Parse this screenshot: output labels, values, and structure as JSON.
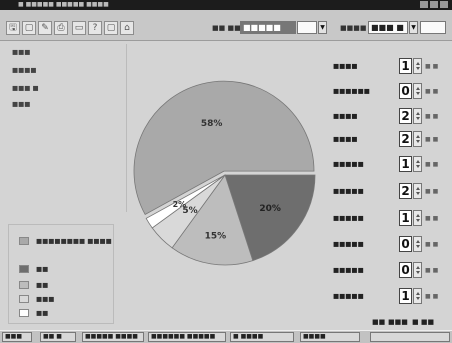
{
  "window": {
    "title": "■ ■■■■■ ■■■■■ ■■■■"
  },
  "toolbar": {
    "buttons": [
      "🖫",
      "▢",
      "✎",
      "⎙",
      "▭",
      "?",
      "▢",
      "⌂"
    ],
    "date_label": "■■ ■■",
    "date_value": "■■■■■",
    "print_label": "■■■■ ■",
    "print_value": "■■■ ■"
  },
  "left_list": [
    "■■■",
    "■■■■",
    "■■■ ■",
    "■■■"
  ],
  "legend": [
    {
      "label": "■■■■■■■■ ■■■■",
      "color": "#a9a9a9"
    },
    {
      "label": "■■",
      "color": "#6e6e6e"
    },
    {
      "label": "■■",
      "color": "#bdbdbd"
    },
    {
      "label": "■■■",
      "color": "#d9d9d9"
    },
    {
      "label": "■■",
      "color": "#ffffff"
    }
  ],
  "chart_data": {
    "type": "pie",
    "slices": [
      {
        "label": "58%",
        "value": 58,
        "color": "#a9a9a9"
      },
      {
        "label": "20%",
        "value": 20,
        "color": "#6e6e6e"
      },
      {
        "label": "15%",
        "value": 15,
        "color": "#bdbdbd"
      },
      {
        "label": "5%",
        "value": 5,
        "color": "#d9d9d9"
      },
      {
        "label": "2%",
        "value": 2,
        "color": "#ffffff"
      }
    ]
  },
  "right_panel": [
    {
      "label": "■■■■",
      "value": "1",
      "unit": "■ ■"
    },
    {
      "label": "■■■■■■",
      "value": "0",
      "unit": "■ ■"
    },
    {
      "label": "■■■■",
      "value": "2",
      "unit": "■ ■"
    },
    {
      "label": "■■■■",
      "value": "2",
      "unit": "■ ■"
    },
    {
      "label": "■■■■■",
      "value": "1",
      "unit": "■ ■"
    },
    {
      "label": "■■■■■",
      "value": "2",
      "unit": "■ ■"
    },
    {
      "label": "■■■■■",
      "value": "1",
      "unit": "■ ■"
    },
    {
      "label": "■■■■■",
      "value": "0",
      "unit": "■ ■"
    },
    {
      "label": "■■■■■",
      "value": "0",
      "unit": "■ ■"
    },
    {
      "label": "■■■■■",
      "value": "1",
      "unit": "■ ■"
    }
  ],
  "bottom_buttons": [
    "■■",
    "■■■",
    "■ ■■"
  ],
  "taskbar": {
    "start_label": "■■■",
    "tasks": [
      "■■ ■",
      "■■■■■ ■■■■",
      "■■■■■■ ■■■■■",
      "■ ■■■■",
      "■■■■"
    ]
  }
}
